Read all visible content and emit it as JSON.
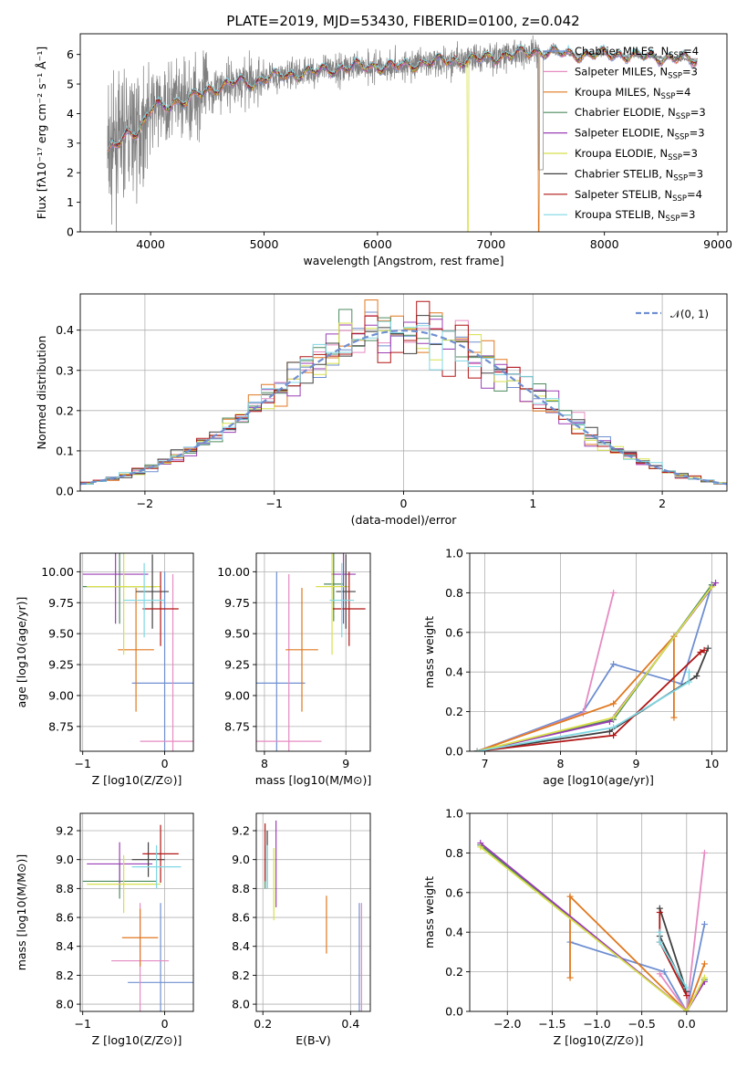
{
  "chart_data": [
    {
      "id": "spectrum",
      "type": "line",
      "title": "PLATE=2019, MJD=53430, FIBERID=0100, z=0.042",
      "xlabel": "wavelength [Angstrom, rest frame]",
      "ylabel": "Flux [fλ10⁻¹⁷ erg cm⁻² s⁻¹ Å⁻¹]",
      "xlim": [
        3380,
        9080
      ],
      "ylim": [
        0,
        6.7
      ],
      "xticks": [
        4000,
        5000,
        6000,
        7000,
        8000,
        9000
      ],
      "yticks": [
        0,
        1,
        2,
        3,
        4,
        5,
        6
      ],
      "continuum": {
        "x": [
          3620,
          3660,
          3720,
          3800,
          3880,
          3950,
          4000,
          4050,
          4100,
          4200,
          4300,
          4400,
          4500,
          4600,
          4700,
          4800,
          4900,
          5000,
          5200,
          5400,
          5600,
          5800,
          6000,
          6200,
          6400,
          6600,
          6800,
          7000,
          7200,
          7400,
          7500,
          7700,
          7900,
          8100,
          8300,
          8500,
          8700,
          8800
        ],
        "y": [
          2.6,
          2.8,
          3.0,
          3.4,
          3.4,
          3.7,
          4.1,
          4.3,
          4.2,
          4.4,
          4.4,
          4.6,
          4.8,
          4.9,
          5.0,
          5.1,
          5.0,
          5.2,
          5.3,
          5.4,
          5.5,
          5.6,
          5.6,
          5.6,
          5.7,
          5.8,
          5.8,
          5.9,
          6.0,
          6.1,
          6.1,
          6.0,
          6.0,
          6.0,
          5.95,
          5.9,
          5.85,
          5.8
        ]
      },
      "legend": [
        {
          "label": "Chabrier MILES, N_SSP=4",
          "color": "#6f8fd1"
        },
        {
          "label": "Salpeter MILES, N_SSP=3",
          "color": "#e58bc2"
        },
        {
          "label": "Kroupa MILES, N_SSP=4",
          "color": "#e0781f"
        },
        {
          "label": "Chabrier ELODIE, N_SSP=3",
          "color": "#4d8a5e"
        },
        {
          "label": "Salpeter ELODIE, N_SSP=3",
          "color": "#9b3fb5"
        },
        {
          "label": "Kroupa ELODIE, N_SSP=3",
          "color": "#d8e04a"
        },
        {
          "label": "Chabrier STELIB, N_SSP=3",
          "color": "#404040"
        },
        {
          "label": "Salpeter STELIB, N_SSP=4",
          "color": "#b01515"
        },
        {
          "label": "Kroupa STELIB, N_SSP=3",
          "color": "#7fd8e4"
        }
      ]
    },
    {
      "id": "residuals",
      "type": "bar",
      "title": "",
      "xlabel": "(data-model)/error",
      "ylabel": "Normed distribution",
      "xlim": [
        -2.5,
        2.5
      ],
      "ylim": [
        0,
        0.49
      ],
      "xticks": [
        -2,
        -1,
        0,
        1,
        2
      ],
      "yticks": [
        0.0,
        0.1,
        0.2,
        0.3,
        0.4
      ],
      "legend": "𝒩(0, 1)",
      "legend_placement": "top-right",
      "bin_width": 0.1,
      "bin_start": -2.5
    },
    {
      "id": "age-vs-Z",
      "type": "scatter",
      "xlabel": "Z [log10(Z/Z⊙)]",
      "ylabel": "age  [log10(age/yr)]",
      "xlim": [
        -1.03,
        0.35
      ],
      "ylim": [
        8.55,
        10.15
      ],
      "xticks": [
        -1,
        0
      ],
      "yticks": [
        8.75,
        9.0,
        9.25,
        9.5,
        9.75,
        10.0
      ],
      "points": [
        {
          "x": 0.0,
          "xerr": 0.4,
          "y": 9.1,
          "yerr": 0.9,
          "color": "#6f8fd1"
        },
        {
          "x": 0.1,
          "xerr": 0.4,
          "y": 8.63,
          "yerr": 1.35,
          "color": "#e58bc2"
        },
        {
          "x": -0.35,
          "xerr": 0.22,
          "y": 9.37,
          "yerr": 0.5,
          "color": "#e0781f"
        },
        {
          "x": -0.55,
          "xerr": 0.45,
          "y": 9.88,
          "yerr": 0.3,
          "color": "#4d8a5e"
        },
        {
          "x": -0.6,
          "xerr": 0.4,
          "y": 9.98,
          "yerr": 0.4,
          "color": "#9b3fb5"
        },
        {
          "x": -0.5,
          "xerr": 0.45,
          "y": 9.88,
          "yerr": 0.55,
          "color": "#d8e04a"
        },
        {
          "x": -0.15,
          "xerr": 0.2,
          "y": 9.84,
          "yerr": 0.3,
          "color": "#404040"
        },
        {
          "x": -0.05,
          "xerr": 0.22,
          "y": 9.7,
          "yerr": 0.3,
          "color": "#b01515"
        },
        {
          "x": -0.25,
          "xerr": 0.25,
          "y": 9.77,
          "yerr": 0.3,
          "color": "#7fd8e4"
        }
      ]
    },
    {
      "id": "age-vs-mass",
      "type": "scatter",
      "xlabel": "mass [log10(M/M⊙)]",
      "ylabel": "",
      "xlim": [
        7.9,
        9.3
      ],
      "ylim": [
        8.55,
        10.15
      ],
      "xticks": [
        8,
        9
      ],
      "yticks": [
        8.75,
        9.0,
        9.25,
        9.5,
        9.75,
        10.0
      ],
      "points": [
        {
          "x": 8.15,
          "xerr": 0.35,
          "y": 9.1,
          "yerr": 0.9,
          "color": "#6f8fd1"
        },
        {
          "x": 8.3,
          "xerr": 0.4,
          "y": 8.63,
          "yerr": 1.35,
          "color": "#e58bc2"
        },
        {
          "x": 8.46,
          "xerr": 0.2,
          "y": 9.37,
          "yerr": 0.5,
          "color": "#e0781f"
        },
        {
          "x": 8.85,
          "xerr": 0.12,
          "y": 9.9,
          "yerr": 0.3,
          "color": "#4d8a5e"
        },
        {
          "x": 8.97,
          "xerr": 0.15,
          "y": 9.98,
          "yerr": 0.4,
          "color": "#9b3fb5"
        },
        {
          "x": 8.83,
          "xerr": 0.2,
          "y": 9.88,
          "yerr": 0.55,
          "color": "#d8e04a"
        },
        {
          "x": 9.0,
          "xerr": 0.12,
          "y": 9.84,
          "yerr": 0.3,
          "color": "#404040"
        },
        {
          "x": 9.04,
          "xerr": 0.2,
          "y": 9.7,
          "yerr": 0.3,
          "color": "#b01515"
        },
        {
          "x": 8.95,
          "xerr": 0.15,
          "y": 9.77,
          "yerr": 0.3,
          "color": "#7fd8e4"
        }
      ]
    },
    {
      "id": "weight-vs-age",
      "type": "line",
      "xlabel": "age  [log10(age/yr)]",
      "ylabel": "mass weight",
      "xlim": [
        6.8,
        10.2
      ],
      "ylim": [
        0,
        1.0
      ],
      "xticks": [
        7,
        8,
        9,
        10
      ],
      "yticks": [
        0.0,
        0.2,
        0.4,
        0.6,
        0.8,
        1.0
      ],
      "series": [
        {
          "color": "#6f8fd1",
          "x": [
            6.9,
            8.3,
            8.7,
            9.6,
            10.0
          ],
          "y": [
            0.0,
            0.2,
            0.44,
            0.34,
            0.84
          ]
        },
        {
          "color": "#e58bc2",
          "x": [
            6.9,
            8.3,
            8.7
          ],
          "y": [
            0.0,
            0.19,
            0.8
          ]
        },
        {
          "color": "#e0781f",
          "x": [
            6.9,
            8.7,
            9.5,
            9.5
          ],
          "y": [
            0.0,
            0.24,
            0.58,
            0.17
          ]
        },
        {
          "color": "#4d8a5e",
          "x": [
            6.9,
            8.7,
            10.0
          ],
          "y": [
            0.0,
            0.16,
            0.84
          ]
        },
        {
          "color": "#9b3fb5",
          "x": [
            6.9,
            8.65,
            10.05
          ],
          "y": [
            0.0,
            0.15,
            0.85
          ]
        },
        {
          "color": "#d8e04a",
          "x": [
            6.9,
            8.7,
            10.0
          ],
          "y": [
            0.0,
            0.17,
            0.83
          ]
        },
        {
          "color": "#404040",
          "x": [
            6.9,
            8.65,
            9.8,
            9.95
          ],
          "y": [
            0.0,
            0.1,
            0.38,
            0.52
          ]
        },
        {
          "color": "#b01515",
          "x": [
            6.9,
            8.7,
            9.85,
            9.9
          ],
          "y": [
            0.0,
            0.08,
            0.5,
            0.51
          ]
        },
        {
          "color": "#7fd8e4",
          "x": [
            6.9,
            8.7,
            9.7,
            9.7
          ],
          "y": [
            0.0,
            0.12,
            0.35,
            0.4
          ]
        }
      ]
    },
    {
      "id": "mass-vs-Z",
      "type": "scatter",
      "xlabel": "Z [log10(Z/Z⊙)]",
      "ylabel": "mass [log10(M/M⊙)]",
      "xlim": [
        -1.03,
        0.35
      ],
      "ylim": [
        7.95,
        9.32
      ],
      "xticks": [
        -1,
        0
      ],
      "yticks": [
        8.0,
        8.2,
        8.4,
        8.6,
        8.8,
        9.0,
        9.2
      ],
      "points": [
        {
          "x": -0.05,
          "xerr": 0.4,
          "y": 8.15,
          "yerr": 0.55,
          "color": "#6f8fd1"
        },
        {
          "x": -0.3,
          "xerr": 0.35,
          "y": 8.3,
          "yerr": 0.4,
          "color": "#e58bc2"
        },
        {
          "x": -0.3,
          "xerr": 0.22,
          "y": 8.46,
          "yerr": 0.2,
          "color": "#e0781f"
        },
        {
          "x": -0.55,
          "xerr": 0.45,
          "y": 8.85,
          "yerr": 0.12,
          "color": "#4d8a5e"
        },
        {
          "x": -0.55,
          "xerr": 0.4,
          "y": 8.97,
          "yerr": 0.15,
          "color": "#9b3fb5"
        },
        {
          "x": -0.5,
          "xerr": 0.45,
          "y": 8.83,
          "yerr": 0.2,
          "color": "#d8e04a"
        },
        {
          "x": -0.2,
          "xerr": 0.2,
          "y": 9.0,
          "yerr": 0.12,
          "color": "#404040"
        },
        {
          "x": -0.05,
          "xerr": 0.22,
          "y": 9.04,
          "yerr": 0.2,
          "color": "#b01515"
        },
        {
          "x": -0.1,
          "xerr": 0.3,
          "y": 8.95,
          "yerr": 0.15,
          "color": "#7fd8e4"
        }
      ]
    },
    {
      "id": "mass-vs-ebv",
      "type": "scatter",
      "xlabel": "E(B-V)",
      "ylabel": "",
      "xlim": [
        0.185,
        0.445
      ],
      "ylim": [
        7.95,
        9.32
      ],
      "xticks": [
        0.2,
        0.4
      ],
      "yticks": [
        8.0,
        8.2,
        8.4,
        8.6,
        8.8,
        9.0,
        9.2
      ],
      "points": [
        {
          "x": 0.42,
          "xerr": 0.0,
          "y": 8.15,
          "yerr": 0.55,
          "color": "#6f8fd1"
        },
        {
          "x": 0.425,
          "xerr": 0.0,
          "y": 8.3,
          "yerr": 0.4,
          "color": "#e58bc2"
        },
        {
          "x": 0.345,
          "xerr": 0.0,
          "y": 8.55,
          "yerr": 0.2,
          "color": "#e0781f"
        },
        {
          "x": 0.205,
          "xerr": 0.0,
          "y": 8.95,
          "yerr": 0.15,
          "color": "#4d8a5e"
        },
        {
          "x": 0.23,
          "xerr": 0.0,
          "y": 8.97,
          "yerr": 0.3,
          "color": "#9b3fb5"
        },
        {
          "x": 0.225,
          "xerr": 0.0,
          "y": 8.83,
          "yerr": 0.25,
          "color": "#d8e04a"
        },
        {
          "x": 0.21,
          "xerr": 0.0,
          "y": 9.0,
          "yerr": 0.2,
          "color": "#404040"
        },
        {
          "x": 0.205,
          "xerr": 0.0,
          "y": 9.05,
          "yerr": 0.2,
          "color": "#b01515"
        },
        {
          "x": 0.21,
          "xerr": 0.0,
          "y": 8.95,
          "yerr": 0.15,
          "color": "#7fd8e4"
        }
      ]
    },
    {
      "id": "weight-vs-Z",
      "type": "line",
      "xlabel": "Z [log10(Z/Z⊙)]",
      "ylabel": "mass weight",
      "xlim": [
        -2.42,
        0.45
      ],
      "ylim": [
        0,
        1.0
      ],
      "xticks": [
        -2.0,
        -1.5,
        -1.0,
        -0.5,
        0.0
      ],
      "yticks": [
        0.0,
        0.2,
        0.4,
        0.6,
        0.8,
        1.0
      ],
      "series": [
        {
          "color": "#6f8fd1",
          "x": [
            -1.3,
            -0.25,
            0.0,
            0.0,
            0.2
          ],
          "y": [
            0.35,
            0.2,
            0.0,
            0.0,
            0.44
          ]
        },
        {
          "color": "#e58bc2",
          "x": [
            -0.3,
            0.0,
            0.2
          ],
          "y": [
            0.19,
            0.0,
            0.8
          ]
        },
        {
          "color": "#e0781f",
          "x": [
            -1.3,
            -1.3,
            0.0,
            0.2
          ],
          "y": [
            0.17,
            0.58,
            0.0,
            0.24
          ]
        },
        {
          "color": "#4d8a5e",
          "x": [
            -2.3,
            0.0,
            0.2
          ],
          "y": [
            0.84,
            0.0,
            0.16
          ]
        },
        {
          "color": "#9b3fb5",
          "x": [
            -2.3,
            0.0,
            0.2
          ],
          "y": [
            0.85,
            0.0,
            0.15
          ]
        },
        {
          "color": "#d8e04a",
          "x": [
            -2.3,
            0.0,
            0.2
          ],
          "y": [
            0.83,
            0.0,
            0.17
          ]
        },
        {
          "color": "#404040",
          "x": [
            -0.3,
            0.0,
            -0.3
          ],
          "y": [
            0.52,
            0.1,
            0.38
          ]
        },
        {
          "color": "#b01515",
          "x": [
            -0.3,
            -0.3,
            0.0
          ],
          "y": [
            0.5,
            0.35,
            0.08
          ]
        },
        {
          "color": "#7fd8e4",
          "x": [
            -0.3,
            -0.3,
            0.0
          ],
          "y": [
            0.4,
            0.35,
            0.12
          ]
        }
      ]
    }
  ]
}
